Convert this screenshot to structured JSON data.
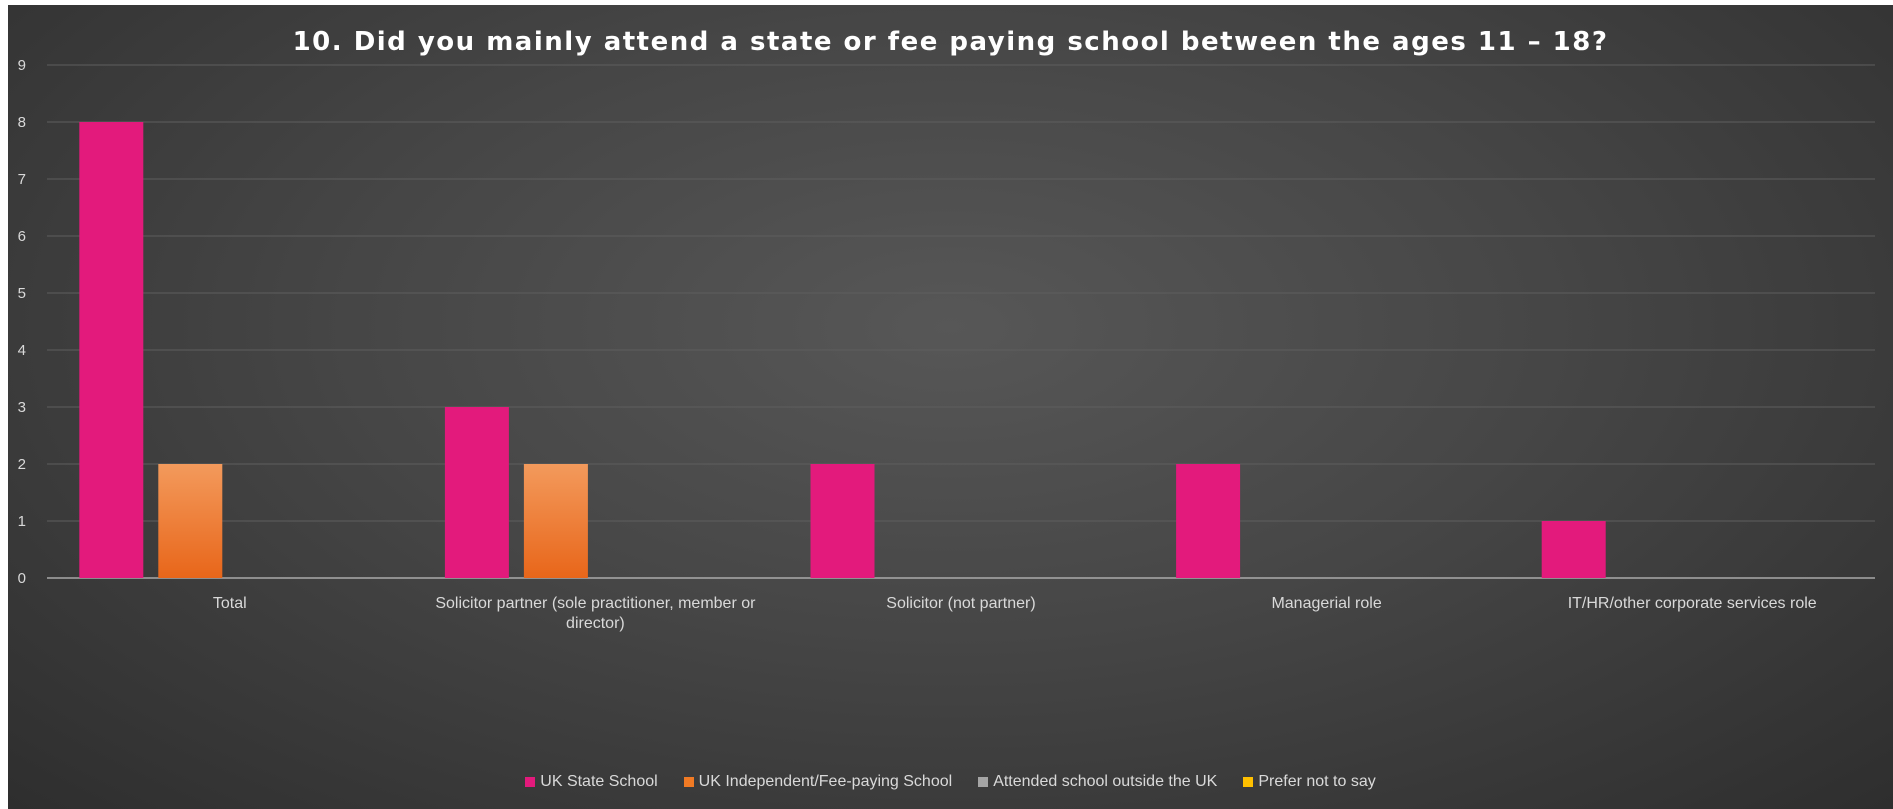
{
  "chart_data": {
    "type": "bar",
    "title": "10. Did you mainly attend a state or fee paying school between the ages 11  – 18?",
    "xlabel": "",
    "ylabel": "",
    "ylim": [
      0,
      9
    ],
    "yticks": [
      0,
      1,
      2,
      3,
      4,
      5,
      6,
      7,
      8,
      9
    ],
    "grid": true,
    "legend_position": "bottom",
    "categories": [
      "Total",
      "Solicitor partner (sole practitioner, member or director)",
      "Solicitor (not partner)",
      "Managerial role",
      "IT/HR/other corporate services role"
    ],
    "category_label_lines": [
      [
        "Total"
      ],
      [
        "Solicitor partner (sole practitioner, member or",
        "director)"
      ],
      [
        "Solicitor (not partner)"
      ],
      [
        "Managerial role"
      ],
      [
        "IT/HR/other corporate services role"
      ]
    ],
    "series": [
      {
        "name": "UK State School",
        "color": "#e31a7c",
        "values": [
          8,
          3,
          2,
          2,
          1
        ]
      },
      {
        "name": "UK Independent/Fee-paying School",
        "color": "#f07a24",
        "values": [
          2,
          2,
          0,
          0,
          0
        ]
      },
      {
        "name": "Attended school outside the UK",
        "color": "#a5a5a5",
        "values": [
          0,
          0,
          0,
          0,
          0
        ]
      },
      {
        "name": "Prefer not to say",
        "color": "#ffc000",
        "values": [
          0,
          0,
          0,
          0,
          0
        ]
      }
    ]
  }
}
